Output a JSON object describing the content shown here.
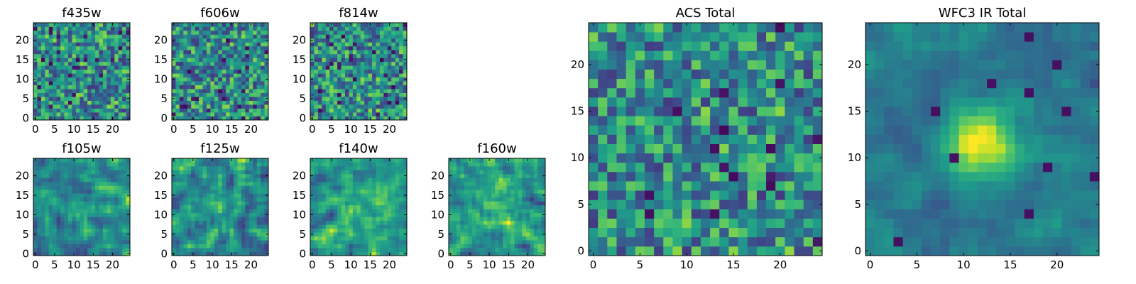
{
  "chart_data": [
    {
      "type": "heatmap",
      "title": "f435w",
      "xticks": [
        "0",
        "5",
        "10",
        "15",
        "20"
      ],
      "yticks": [
        "0",
        "5",
        "10",
        "15",
        "20"
      ],
      "xlim": [
        -0.5,
        24.5
      ],
      "ylim": [
        -0.5,
        24.5
      ],
      "grid_size": 25,
      "colormap": "viridis",
      "pattern": "noise"
    },
    {
      "type": "heatmap",
      "title": "f606w",
      "xticks": [
        "0",
        "5",
        "10",
        "15",
        "20"
      ],
      "yticks": [
        "0",
        "5",
        "10",
        "15",
        "20"
      ],
      "xlim": [
        -0.5,
        24.5
      ],
      "ylim": [
        -0.5,
        24.5
      ],
      "grid_size": 25,
      "colormap": "viridis",
      "pattern": "noise"
    },
    {
      "type": "heatmap",
      "title": "f814w",
      "xticks": [
        "0",
        "5",
        "10",
        "15",
        "20"
      ],
      "yticks": [
        "0",
        "5",
        "10",
        "15",
        "20"
      ],
      "xlim": [
        -0.5,
        24.5
      ],
      "ylim": [
        -0.5,
        24.5
      ],
      "grid_size": 25,
      "colormap": "viridis",
      "pattern": "noise"
    },
    {
      "type": "heatmap",
      "title": "f105w",
      "xticks": [
        "0",
        "5",
        "10",
        "15",
        "20"
      ],
      "yticks": [
        "0",
        "5",
        "10",
        "15",
        "20"
      ],
      "xlim": [
        -0.5,
        24.5
      ],
      "ylim": [
        -0.5,
        24.5
      ],
      "grid_size": 25,
      "colormap": "viridis",
      "pattern": "smooth-source"
    },
    {
      "type": "heatmap",
      "title": "f125w",
      "xticks": [
        "0",
        "5",
        "10",
        "15",
        "20"
      ],
      "yticks": [
        "0",
        "5",
        "10",
        "15",
        "20"
      ],
      "xlim": [
        -0.5,
        24.5
      ],
      "ylim": [
        -0.5,
        24.5
      ],
      "grid_size": 25,
      "colormap": "viridis",
      "pattern": "smooth-source"
    },
    {
      "type": "heatmap",
      "title": "f140w",
      "xticks": [
        "0",
        "5",
        "10",
        "15",
        "20"
      ],
      "yticks": [
        "0",
        "5",
        "10",
        "15",
        "20"
      ],
      "xlim": [
        -0.5,
        24.5
      ],
      "ylim": [
        -0.5,
        24.5
      ],
      "grid_size": 25,
      "colormap": "viridis",
      "pattern": "smooth-source"
    },
    {
      "type": "heatmap",
      "title": "f160w",
      "xticks": [
        "0",
        "5",
        "10",
        "15",
        "20"
      ],
      "yticks": [
        "0",
        "5",
        "10",
        "15",
        "20"
      ],
      "xlim": [
        -0.5,
        24.5
      ],
      "ylim": [
        -0.5,
        24.5
      ],
      "grid_size": 25,
      "colormap": "viridis",
      "pattern": "smooth-source"
    },
    {
      "type": "heatmap",
      "title": "ACS Total",
      "xticks": [
        "0",
        "5",
        "10",
        "15",
        "20"
      ],
      "yticks": [
        "0",
        "5",
        "10",
        "15",
        "20"
      ],
      "xlim": [
        -0.5,
        24.5
      ],
      "ylim": [
        -0.5,
        24.5
      ],
      "grid_size": 25,
      "colormap": "viridis",
      "pattern": "noise"
    },
    {
      "type": "heatmap",
      "title": "WFC3 IR Total",
      "xticks": [
        "0",
        "5",
        "10",
        "15",
        "20"
      ],
      "yticks": [
        "0",
        "5",
        "10",
        "15",
        "20"
      ],
      "xlim": [
        -0.5,
        24.5
      ],
      "ylim": [
        -0.5,
        24.5
      ],
      "grid_size": 25,
      "colormap": "viridis",
      "pattern": "central-source"
    }
  ]
}
